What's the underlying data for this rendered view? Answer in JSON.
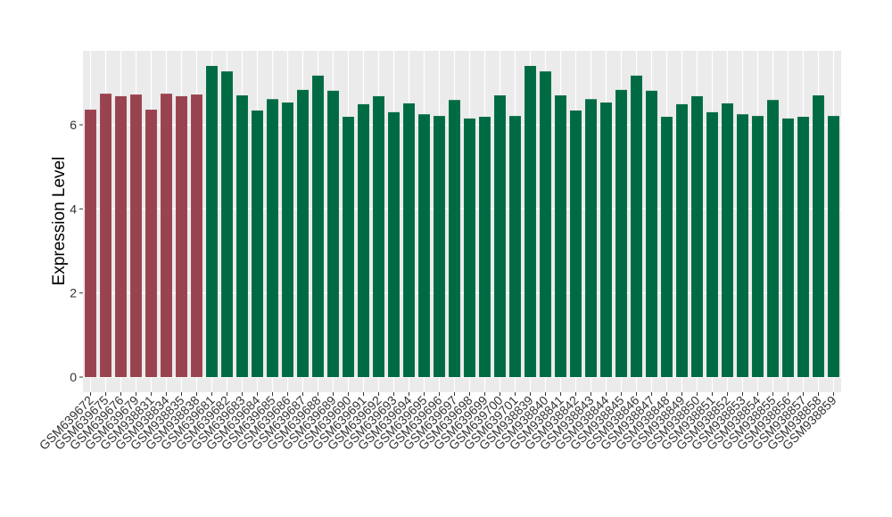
{
  "chart_data": {
    "type": "bar",
    "y_label": "Expression Level",
    "categories": [
      "GSM639672",
      "GSM639675",
      "GSM639676",
      "GSM639679",
      "GSM938831",
      "GSM938834",
      "GSM938835",
      "GSM938838",
      "GSM639681",
      "GSM639682",
      "GSM639683",
      "GSM639684",
      "GSM639685",
      "GSM639686",
      "GSM639687",
      "GSM639688",
      "GSM639689",
      "GSM639690",
      "GSM639691",
      "GSM639692",
      "GSM639693",
      "GSM639694",
      "GSM639695",
      "GSM639696",
      "GSM639697",
      "GSM639698",
      "GSM639699",
      "GSM639700",
      "GSM639701",
      "GSM938839",
      "GSM938840",
      "GSM938841",
      "GSM938842",
      "GSM938843",
      "GSM938844",
      "GSM938845",
      "GSM938846",
      "GSM938847",
      "GSM938848",
      "GSM938849",
      "GSM938850",
      "GSM938851",
      "GSM938852",
      "GSM938853",
      "GSM938854",
      "GSM938855",
      "GSM938856",
      "GSM938857",
      "GSM938858",
      "GSM938859"
    ],
    "values": [
      6.36,
      6.74,
      6.68,
      6.72,
      6.36,
      6.74,
      6.68,
      6.72,
      7.4,
      7.27,
      6.7,
      6.34,
      6.61,
      6.53,
      6.83,
      7.17,
      6.81,
      6.19,
      6.49,
      6.68,
      6.3,
      6.51,
      6.25,
      6.21,
      6.59,
      6.15,
      6.19,
      6.7,
      6.21,
      7.4,
      7.27,
      6.7,
      6.34,
      6.61,
      6.53,
      6.83,
      7.17,
      6.81,
      6.19,
      6.49,
      6.68,
      6.3,
      6.51,
      6.25,
      6.21,
      6.59,
      6.15,
      6.19,
      6.7,
      6.21
    ],
    "colors": [
      "#9a4350",
      "#9a4350",
      "#9a4350",
      "#9a4350",
      "#9a4350",
      "#9a4350",
      "#9a4350",
      "#9a4350",
      "#006b43",
      "#006b43",
      "#006b43",
      "#006b43",
      "#006b43",
      "#006b43",
      "#006b43",
      "#006b43",
      "#006b43",
      "#006b43",
      "#006b43",
      "#006b43",
      "#006b43",
      "#006b43",
      "#006b43",
      "#006b43",
      "#006b43",
      "#006b43",
      "#006b43",
      "#006b43",
      "#006b43",
      "#006b43",
      "#006b43",
      "#006b43",
      "#006b43",
      "#006b43",
      "#006b43",
      "#006b43",
      "#006b43",
      "#006b43",
      "#006b43",
      "#006b43",
      "#006b43",
      "#006b43",
      "#006b43",
      "#006b43",
      "#006b43",
      "#006b43",
      "#006b43",
      "#006b43",
      "#006b43",
      "#006b43"
    ],
    "ylim": [
      -0.36,
      7.76
    ],
    "yticks": [
      0,
      2,
      4,
      6
    ],
    "grid": true
  }
}
